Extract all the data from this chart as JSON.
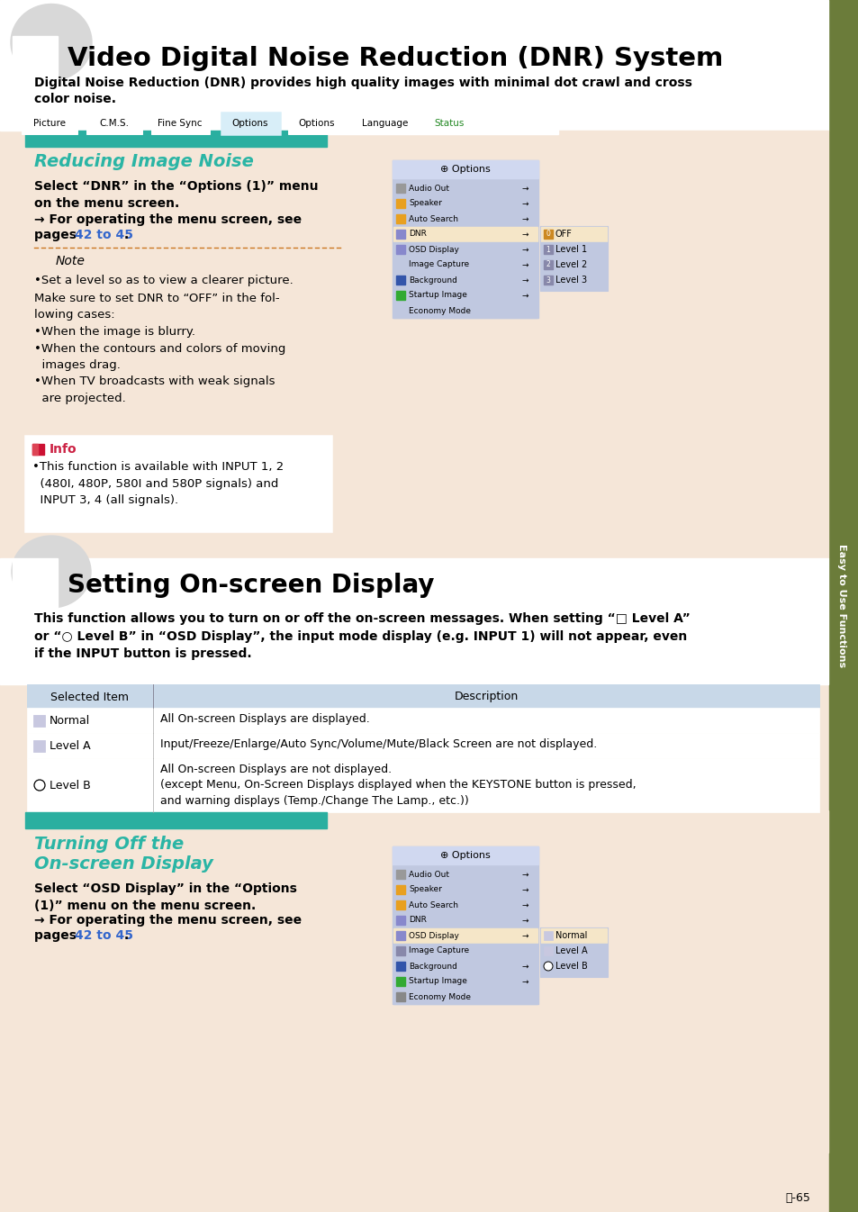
{
  "bg_color": "#f5e6d8",
  "white_bg": "#ffffff",
  "teal_color": "#2ab5a5",
  "title1": "Video Digital Noise Reduction (DNR) System",
  "title2": "Setting On-screen Display",
  "subtitle1": "Digital Noise Reduction (DNR) provides high quality images with minimal dot crawl and cross\ncolor noise.",
  "section1_title": "Reducing Image Noise",
  "section3_title_line1": "Turning Off the",
  "section3_title_line2": "On-screen Display",
  "link_color": "#3366cc",
  "orange_border": "#e07820",
  "info_red": "#cc2244",
  "sidebar_color": "#6b7c3a",
  "sidebar_text": "Easy to Use Functions",
  "page_num": "Ⓐ-65",
  "teal_bar_color": "#2aafa0",
  "note_dashed_color": "#cc7722",
  "table_header_bg": "#c8d8e8",
  "table_border": "#aaaaaa",
  "panel_bg": "#c0c8e0",
  "panel_border": "#8888aa",
  "panel_header_bg": "#d0d8f0",
  "sub_panel_highlight": "#f5e6c8"
}
